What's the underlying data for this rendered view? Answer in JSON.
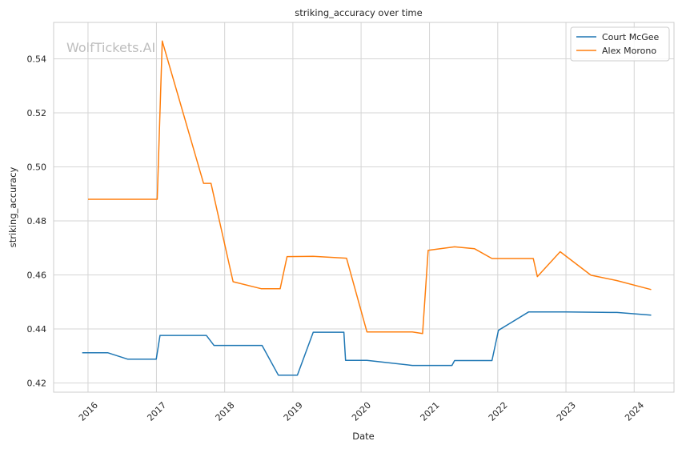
{
  "chart_data": {
    "type": "line",
    "title": "striking_accuracy over time",
    "xlabel": "Date",
    "ylabel": "striking_accuracy",
    "watermark": "WolfTickets.AI",
    "xlim": [
      "2015-07-01",
      "2024-08-01"
    ],
    "ylim": [
      0.4166,
      0.5535
    ],
    "x_ticks": [
      "2016",
      "2017",
      "2018",
      "2019",
      "2020",
      "2021",
      "2022",
      "2023",
      "2024"
    ],
    "y_ticks": [
      "0.42",
      "0.44",
      "0.46",
      "0.48",
      "0.50",
      "0.52",
      "0.54"
    ],
    "grid": true,
    "legend_position": "top-right",
    "series": [
      {
        "name": "Court McGee",
        "color": "#1f77b4",
        "points": [
          [
            "2015-12-01",
            0.4312
          ],
          [
            "2016-04-15",
            0.4312
          ],
          [
            "2016-08-01",
            0.4288
          ],
          [
            "2016-12-31",
            0.4288
          ],
          [
            "2017-01-20",
            0.4376
          ],
          [
            "2017-09-25",
            0.4376
          ],
          [
            "2017-11-05",
            0.4339
          ],
          [
            "2018-07-20",
            0.4339
          ],
          [
            "2018-10-15",
            0.4229
          ],
          [
            "2019-01-25",
            0.4229
          ],
          [
            "2019-04-20",
            0.4388
          ],
          [
            "2019-10-01",
            0.4388
          ],
          [
            "2019-10-10",
            0.4284
          ],
          [
            "2020-02-01",
            0.4284
          ],
          [
            "2020-10-01",
            0.4265
          ],
          [
            "2021-05-01",
            0.4265
          ],
          [
            "2021-05-15",
            0.4283
          ],
          [
            "2021-12-01",
            0.4283
          ],
          [
            "2022-01-05",
            0.4395
          ],
          [
            "2022-06-15",
            0.4463
          ],
          [
            "2023-01-01",
            0.4463
          ],
          [
            "2023-10-01",
            0.4461
          ],
          [
            "2024-04-01",
            0.4451
          ]
        ]
      },
      {
        "name": "Alex Morono",
        "color": "#ff7f0e",
        "points": [
          [
            "2016-01-01",
            0.488
          ],
          [
            "2017-01-05",
            0.488
          ],
          [
            "2017-02-01",
            0.5466
          ],
          [
            "2017-09-10",
            0.4939
          ],
          [
            "2017-10-20",
            0.4939
          ],
          [
            "2018-02-15",
            0.4575
          ],
          [
            "2018-07-15",
            0.4549
          ],
          [
            "2018-10-25",
            0.4549
          ],
          [
            "2018-12-01",
            0.4668
          ],
          [
            "2019-04-20",
            0.4669
          ],
          [
            "2019-10-15",
            0.4662
          ],
          [
            "2020-02-01",
            0.4389
          ],
          [
            "2020-10-01",
            0.4389
          ],
          [
            "2020-11-25",
            0.4383
          ],
          [
            "2020-12-25",
            0.4691
          ],
          [
            "2021-05-15",
            0.4704
          ],
          [
            "2021-08-30",
            0.4697
          ],
          [
            "2021-12-01",
            0.4661
          ],
          [
            "2022-07-10",
            0.4661
          ],
          [
            "2022-08-01",
            0.4594
          ],
          [
            "2022-12-01",
            0.4686
          ],
          [
            "2023-05-15",
            0.4599
          ],
          [
            "2023-10-01",
            0.4579
          ],
          [
            "2024-04-01",
            0.4546
          ]
        ]
      }
    ]
  }
}
